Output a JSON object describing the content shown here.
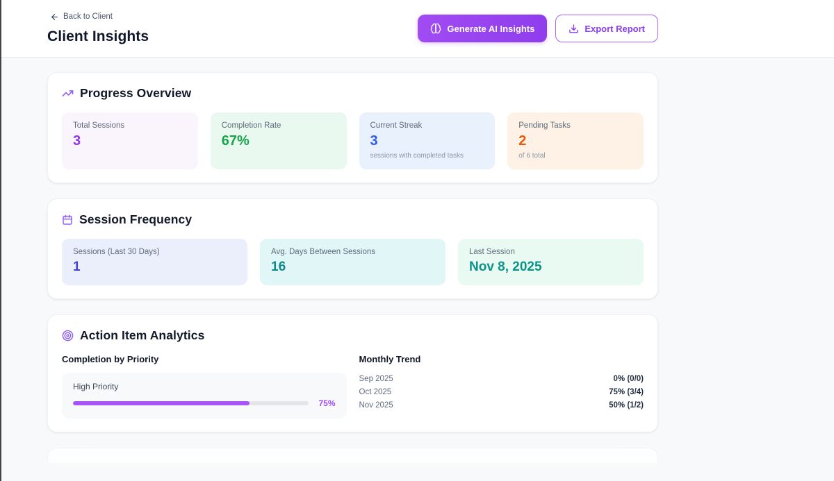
{
  "header": {
    "back_label": "Back to Client",
    "title": "Client Insights",
    "generate_button_label": "Generate AI Insights",
    "export_button_label": "Export Report"
  },
  "progress_overview": {
    "title": "Progress Overview",
    "icon": "trending-up-icon",
    "stats": [
      {
        "label": "Total Sessions",
        "value": "3",
        "subtitle": "",
        "bg": "#faf5fc",
        "value_color": "#9333ea"
      },
      {
        "label": "Completion Rate",
        "value": "67%",
        "subtitle": "",
        "bg": "#e9f9ef",
        "value_color": "#16a34a"
      },
      {
        "label": "Current Streak",
        "value": "3",
        "subtitle": "sessions with completed tasks",
        "bg": "#e9f1fc",
        "value_color": "#2f5be9"
      },
      {
        "label": "Pending Tasks",
        "value": "2",
        "subtitle": "of 6 total",
        "bg": "#fdf2e5",
        "value_color": "#ea580c"
      }
    ]
  },
  "session_frequency": {
    "title": "Session Frequency",
    "icon": "calendar-icon",
    "stats": [
      {
        "label": "Sessions (Last 30 Days)",
        "value": "1",
        "bg": "#ebeffb",
        "value_color": "#4740d6"
      },
      {
        "label": "Avg. Days Between Sessions",
        "value": "16",
        "bg": "#e1f6f7",
        "value_color": "#0e8a8d"
      },
      {
        "label": "Last Session",
        "value": "Nov 8, 2025",
        "bg": "#e8faf2",
        "value_color": "#0d9488"
      }
    ]
  },
  "action_analytics": {
    "title": "Action Item Analytics",
    "icon": "target-icon",
    "priority_heading": "Completion by Priority",
    "priority_bars": [
      {
        "label": "High Priority",
        "percent": 75,
        "percent_label": "75%",
        "bar_color": "#a855f7"
      }
    ],
    "trend_heading": "Monthly Trend",
    "trend_rows": [
      {
        "month": "Sep 2025",
        "value": "0% (0/0)"
      },
      {
        "month": "Oct 2025",
        "value": "75% (3/4)"
      },
      {
        "month": "Nov 2025",
        "value": "50% (1/2)"
      }
    ]
  },
  "colors": {
    "accent_purple": "#9333ea",
    "accent_purple_light": "#a855f7",
    "icon_purple": "#8b5cf6",
    "page_background": "#f8f9fb",
    "card_background": "#ffffff",
    "muted_text": "#5f6b7d"
  }
}
